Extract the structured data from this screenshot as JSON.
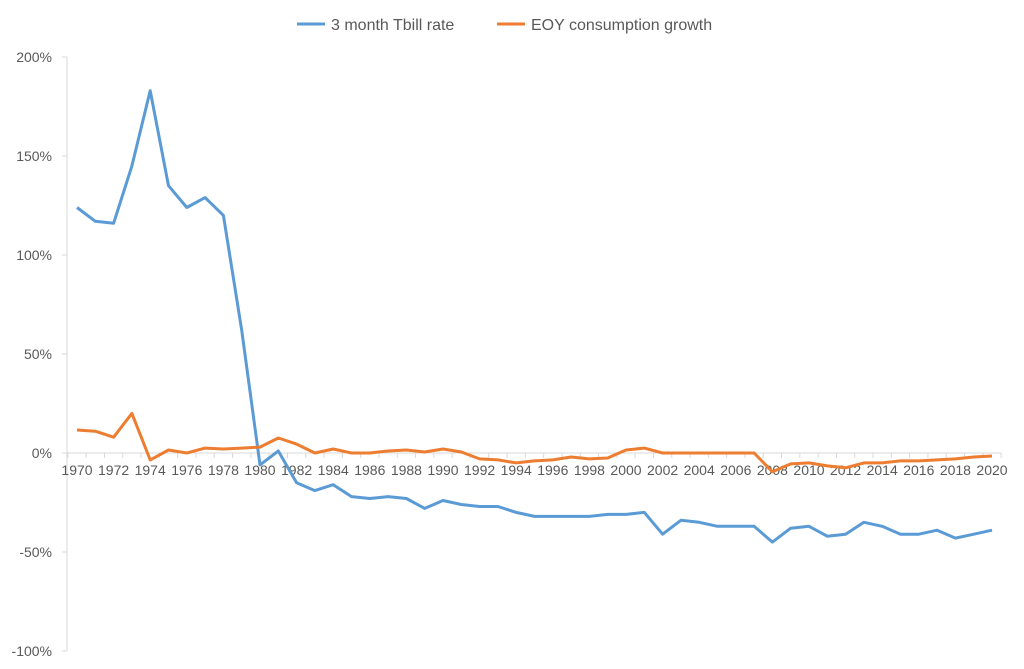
{
  "chart_data": {
    "type": "line",
    "title": "",
    "xlabel": "",
    "ylabel": "",
    "ylim": [
      -100,
      200
    ],
    "y_ticks": [
      200,
      150,
      100,
      50,
      0,
      -50,
      -100
    ],
    "y_tick_labels": [
      "200%",
      "150%",
      "100%",
      "50%",
      "0%",
      "-50%",
      "-100%"
    ],
    "legend_position": "top",
    "grid": false,
    "x": [
      1970,
      1971,
      1972,
      1973,
      1974,
      1975,
      1976,
      1977,
      1978,
      1979,
      1980,
      1981,
      1982,
      1983,
      1984,
      1985,
      1986,
      1987,
      1988,
      1989,
      1990,
      1991,
      1992,
      1993,
      1994,
      1995,
      1996,
      1997,
      1998,
      1999,
      2000,
      2001,
      2002,
      2003,
      2004,
      2005,
      2006,
      2007,
      2008,
      2009,
      2010,
      2011,
      2012,
      2013,
      2014,
      2015,
      2016,
      2017,
      2018,
      2019,
      2020
    ],
    "x_tick_labels": [
      "1970",
      "1972",
      "1974",
      "1976",
      "1978",
      "1980",
      "1982",
      "1984",
      "1986",
      "1988",
      "1990",
      "1992",
      "1994",
      "1996",
      "1998",
      "2000",
      "2002",
      "2004",
      "2006",
      "2008",
      "2010",
      "2012",
      "2014",
      "2016",
      "2018",
      "2020"
    ],
    "series": [
      {
        "name": "3 month Tbill rate",
        "color": "#5B9BD5",
        "values": [
          124,
          117,
          116,
          145,
          183,
          135,
          124,
          129,
          120,
          62,
          -6,
          1,
          -15,
          -19,
          -16,
          -22,
          -23,
          -22,
          -23,
          -28,
          -24,
          -26,
          -27,
          -27,
          -30,
          -32,
          -32,
          -32,
          -32,
          -31,
          -31,
          -30,
          -41,
          -34,
          -35,
          -37,
          -37,
          -37,
          -45,
          -38,
          -37,
          -42,
          -41,
          -35,
          -37,
          -41,
          -41,
          -39,
          -43,
          -41,
          -39
        ]
      },
      {
        "name": "EOY consumption growth",
        "color": "#ED7D31",
        "values": [
          11.6,
          11,
          8,
          20,
          -3.5,
          1.5,
          0,
          2.5,
          2,
          2.5,
          3,
          7.6,
          4.5,
          0,
          2,
          0,
          0,
          1,
          1.5,
          0.5,
          2,
          0.5,
          -3,
          -3.5,
          -5,
          -4,
          -3.5,
          -2,
          -3,
          -2.5,
          1.5,
          2.5,
          0,
          0,
          0,
          0,
          0,
          0,
          -9.5,
          -5.5,
          -5,
          -6.5,
          -7.5,
          -5,
          -5,
          -4,
          -4,
          -3.5,
          -3,
          -2,
          -1.5
        ]
      }
    ]
  }
}
